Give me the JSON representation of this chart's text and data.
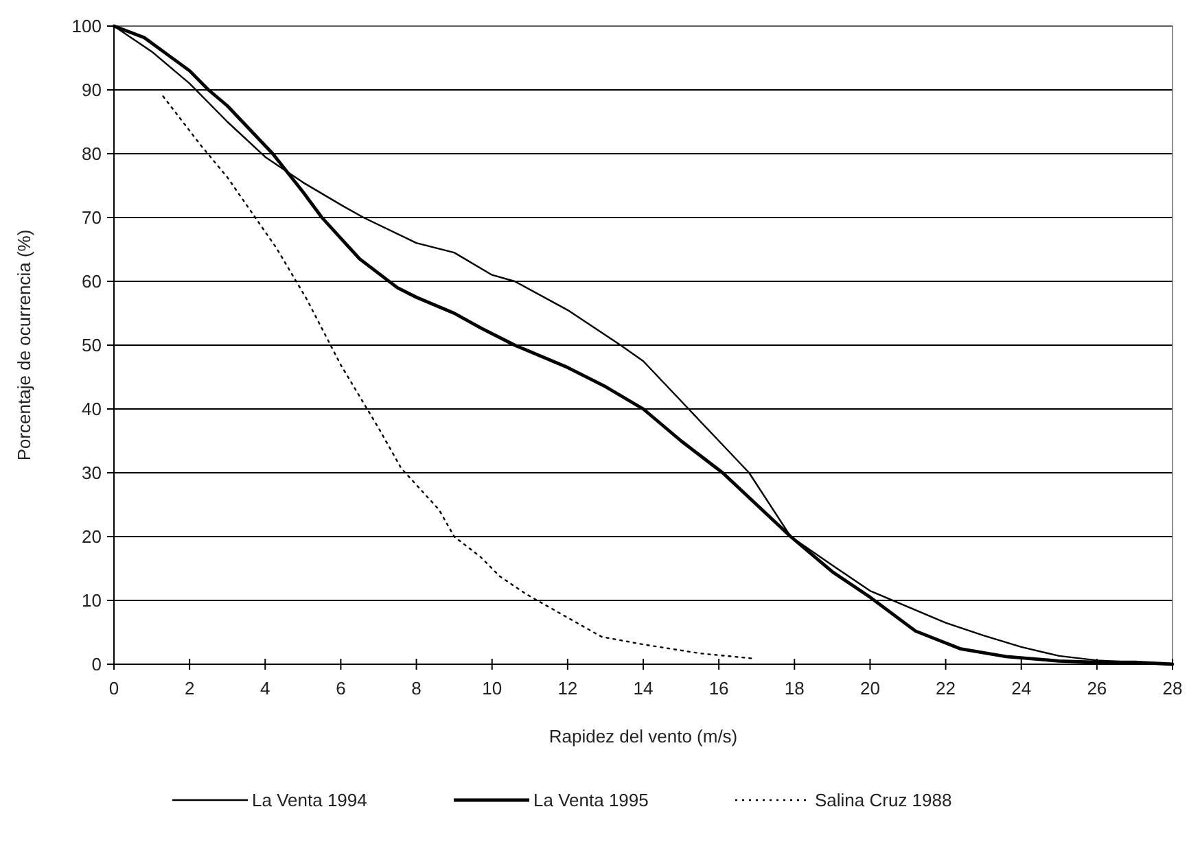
{
  "chart_data": {
    "type": "line",
    "xlabel": "Rapidez del vento (m/s)",
    "ylabel": "Porcentaje de ocurrencia (%)",
    "xlim": [
      0,
      28
    ],
    "xticks": [
      0,
      2,
      4,
      6,
      8,
      10,
      12,
      14,
      16,
      18,
      20,
      22,
      24,
      26,
      28
    ],
    "ylim": [
      0,
      100
    ],
    "yticks": [
      0,
      10,
      20,
      30,
      40,
      50,
      60,
      70,
      80,
      90,
      100
    ],
    "grid": "y",
    "legend": "bottom",
    "marker": "none",
    "series": [
      {
        "name": "La Venta 1994",
        "color": "#000000",
        "line_style": "solid",
        "x": [
          0,
          1,
          2,
          3,
          4,
          5,
          6,
          6.6,
          8,
          9,
          10,
          10.6,
          12,
          13.4,
          14,
          15.2,
          16,
          16.8,
          17.9,
          19,
          20,
          21,
          22,
          23,
          24,
          25,
          26,
          27,
          28
        ],
        "values": [
          100,
          96,
          91,
          85,
          79.5,
          75.5,
          72,
          70,
          66,
          64.5,
          61,
          60,
          55.5,
          50,
          47.5,
          40,
          35,
          30,
          20,
          15.5,
          11.5,
          9,
          6.5,
          4.5,
          2.7,
          1.3,
          0.6,
          0.3,
          0
        ]
      },
      {
        "name": "La Venta 1995",
        "color": "#000000",
        "line_style": "solid",
        "x": [
          0,
          0.8,
          2,
          2.5,
          3,
          4.2,
          5,
          5.5,
          6.5,
          7.5,
          8,
          9,
          9.7,
          10.6,
          12,
          13,
          14,
          15,
          16.1,
          17,
          17.9,
          19,
          20,
          21.2,
          22.4,
          23.6,
          25,
          26,
          27,
          28
        ],
        "values": [
          100,
          98.2,
          93,
          90,
          87.5,
          80,
          74,
          70,
          63.5,
          59,
          57.5,
          55,
          52.7,
          50,
          46.5,
          43.5,
          40,
          35,
          30,
          25,
          20,
          14.5,
          10.5,
          5.2,
          2.4,
          1.2,
          0.5,
          0.3,
          0.3,
          0
        ]
      },
      {
        "name": "Salina Cruz 1988",
        "color": "#000000",
        "line_style": "dotted",
        "x": [
          1.3,
          2.3,
          3,
          4.3,
          5.1,
          6,
          7,
          7.6,
          8.6,
          9,
          9.7,
          10.2,
          10.9,
          12,
          12.9,
          14,
          15.5,
          16.9
        ],
        "values": [
          89,
          81.3,
          76.3,
          65.2,
          57.2,
          46.9,
          37,
          30.7,
          24.2,
          20,
          16.8,
          13.8,
          11,
          7.3,
          4.3,
          3.1,
          1.7,
          0.9
        ]
      }
    ]
  }
}
